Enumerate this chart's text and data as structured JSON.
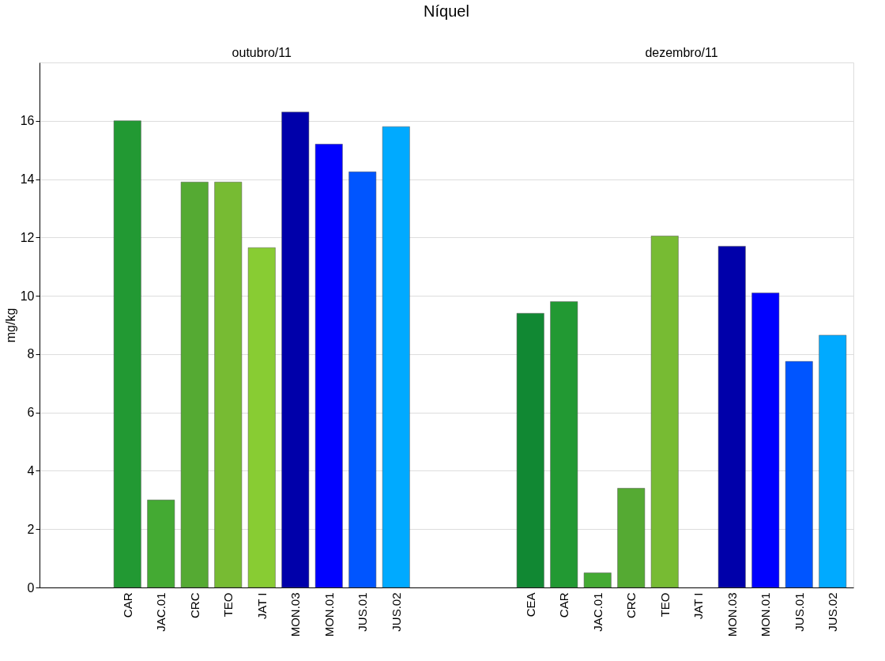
{
  "chart_data": {
    "type": "bar",
    "title": "Níquel",
    "ylabel": "mg/kg",
    "annotations": [
      "outubro/11",
      "dezembro/11"
    ],
    "categories": [
      null,
      null,
      "CAR",
      "JAC.01",
      "CRC",
      "TEO",
      "JAT I",
      "MON.03",
      "MON.01",
      "JUS.01",
      "JUS.02",
      null,
      null,
      null,
      "CEA",
      "CAR",
      "JAC.01",
      "CRC",
      "TEO",
      "JAT I",
      "MON.03",
      "MON.01",
      "JUS.01",
      "JUS.02"
    ],
    "values": [
      null,
      null,
      16.0,
      3.0,
      13.9,
      13.9,
      11.65,
      16.3,
      15.2,
      14.25,
      15.8,
      null,
      null,
      null,
      9.4,
      9.8,
      0.5,
      3.4,
      12.05,
      null,
      11.7,
      10.1,
      7.75,
      8.65
    ],
    "colors": [
      null,
      null,
      "#229933",
      "#44aa33",
      "#55aa33",
      "#77bb33",
      "#88cc33",
      "#0000aa",
      "#0000ff",
      "#0055ff",
      "#00aaff",
      null,
      null,
      null,
      "#118833",
      "#229933",
      "#44aa33",
      "#55aa33",
      "#77bb33",
      null,
      "#0000aa",
      "#0000ff",
      "#0055ff",
      "#00aaff"
    ],
    "ylim": [
      0,
      18
    ],
    "yticks": [
      0,
      2,
      4,
      6,
      8,
      10,
      12,
      14,
      16
    ],
    "grid": "y",
    "legend": false
  }
}
